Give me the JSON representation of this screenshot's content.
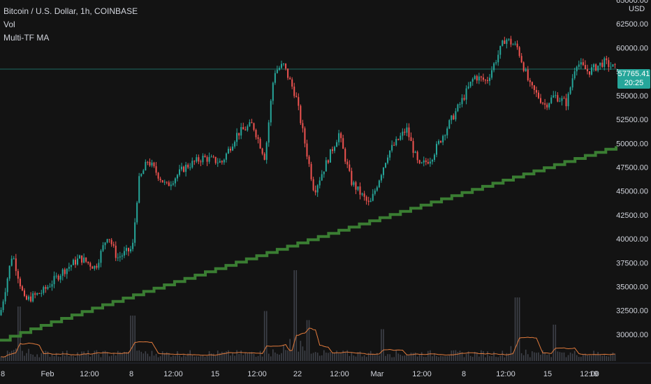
{
  "legend": {
    "symbol": "Bitcoin / U.S. Dollar, 1h, COINBASE",
    "volume": "Vol",
    "indicator": "Multi-TF MA"
  },
  "price_axis": {
    "currency": "USD",
    "last_price": "57765.41",
    "countdown": "20:25"
  },
  "colors": {
    "background": "#131313",
    "up": "#26a69a",
    "down": "#ef5350",
    "ma": "#3a7d32",
    "volume_ma": "#e07a3c",
    "text": "#d1d4dc"
  },
  "chart_data": {
    "type": "candlestick",
    "symbol": "Bitcoin / U.S. Dollar",
    "interval": "1h",
    "exchange": "COINBASE",
    "ylim": [
      27000,
      65000
    ],
    "y_ticks": [
      30000,
      32500,
      35000,
      37500,
      40000,
      42500,
      45000,
      47500,
      50000,
      52500,
      55000,
      57500,
      60000,
      62500,
      65000
    ],
    "y_tick_labels": [
      "30000.00",
      "32500.00",
      "35000.00",
      "37500.00",
      "40000.00",
      "42500.00",
      "45000.00",
      "47500.00",
      "50000.00",
      "52500.00",
      "55000.00",
      "57500.00",
      "60000.00",
      "62500.00",
      "65000.00"
    ],
    "x_tick_labels": [
      "8",
      "Feb",
      "12:00",
      "8",
      "12:00",
      "15",
      "12:00",
      "22",
      "12:00",
      "Mar",
      "12:00",
      "8",
      "12:00",
      "15",
      "12:00",
      "19"
    ],
    "last_price": 57765.41,
    "price_path": {
      "x_fraction": [
        0,
        0.02,
        0.04,
        0.07,
        0.1,
        0.13,
        0.155,
        0.175,
        0.19,
        0.215,
        0.225,
        0.24,
        0.27,
        0.3,
        0.33,
        0.36,
        0.385,
        0.41,
        0.43,
        0.445,
        0.46,
        0.48,
        0.51,
        0.55,
        0.57,
        0.6,
        0.63,
        0.66,
        0.68,
        0.7,
        0.72,
        0.75,
        0.77,
        0.79,
        0.82,
        0.84,
        0.86,
        0.885,
        0.9,
        0.92,
        0.935,
        0.955,
        0.98,
        1
      ],
      "price": [
        32000,
        38500,
        33500,
        34500,
        36500,
        38000,
        37000,
        40500,
        38000,
        39000,
        46000,
        48200,
        45500,
        47500,
        48500,
        48000,
        51000,
        52000,
        48500,
        57500,
        58200,
        55000,
        45000,
        51000,
        46000,
        43500,
        49000,
        51500,
        47500,
        48500,
        51000,
        54500,
        57000,
        56500,
        61000,
        60000,
        56000,
        54000,
        55000,
        54200,
        58500,
        57500,
        58500,
        57765
      ]
    },
    "ma_series": {
      "name": "Multi-TF MA",
      "start": 29400,
      "end": 49700
    },
    "volume_panel": {
      "name": "Vol",
      "spikes": [
        {
          "x_fraction": 0.03,
          "height": 0.6
        },
        {
          "x_fraction": 0.215,
          "height": 0.5
        },
        {
          "x_fraction": 0.43,
          "height": 0.55
        },
        {
          "x_fraction": 0.48,
          "height": 1.0
        },
        {
          "x_fraction": 0.5,
          "height": 0.45
        },
        {
          "x_fraction": 0.62,
          "height": 0.35
        },
        {
          "x_fraction": 0.84,
          "height": 0.7
        },
        {
          "x_fraction": 0.9,
          "height": 0.4
        }
      ]
    }
  }
}
